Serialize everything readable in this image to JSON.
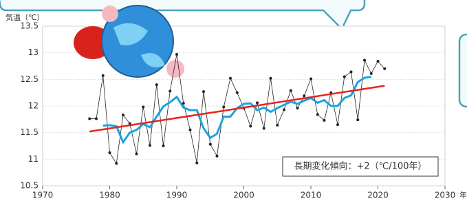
{
  "chart_data": {
    "type": "line",
    "ylabel": "気温（℃）",
    "xlabel": "年",
    "annotation": "長期変化傾向：+2（℃/100年）",
    "xlim": [
      1970,
      2030
    ],
    "xticks": [
      1970,
      1980,
      1990,
      2000,
      2010,
      2020,
      2030
    ],
    "ylim": [
      10.5,
      13.5
    ],
    "yticks": [
      10.5,
      11,
      11.5,
      12,
      12.5,
      13,
      13.5
    ],
    "grid": true,
    "series": [
      {
        "color": "#222222",
        "markers": true,
        "x": [
          1977,
          1978,
          1979,
          1980,
          1981,
          1982,
          1983,
          1984,
          1985,
          1986,
          1987,
          1988,
          1989,
          1990,
          1991,
          1992,
          1993,
          1994,
          1995,
          1996,
          1997,
          1998,
          1999,
          2000,
          2001,
          2002,
          2003,
          2004,
          2005,
          2006,
          2007,
          2008,
          2009,
          2010,
          2011,
          2012,
          2013,
          2014,
          2015,
          2016,
          2017,
          2018,
          2019,
          2020,
          2021
        ],
        "values": [
          11.76,
          11.76,
          12.57,
          11.12,
          10.92,
          11.83,
          11.67,
          11.1,
          11.98,
          11.26,
          12.4,
          11.25,
          12.28,
          12.97,
          12.05,
          11.55,
          10.93,
          12.27,
          11.28,
          11.06,
          11.98,
          12.52,
          12.25,
          11.96,
          11.62,
          12.06,
          11.58,
          12.52,
          11.64,
          11.93,
          12.29,
          11.96,
          12.19,
          12.51,
          11.84,
          11.73,
          12.25,
          11.65,
          12.55,
          12.64,
          11.74,
          12.86,
          12.61,
          12.84,
          12.7
        ]
      },
      {
        "color": "#1aa3e0",
        "markers": false,
        "x": [
          1979,
          1980,
          1981,
          1982,
          1983,
          1984,
          1985,
          1986,
          1987,
          1988,
          1989,
          1990,
          1991,
          1992,
          1993,
          1994,
          1995,
          1996,
          1997,
          1998,
          1999,
          2000,
          2001,
          2002,
          2003,
          2004,
          2005,
          2006,
          2007,
          2008,
          2009,
          2010,
          2011,
          2012,
          2013,
          2014,
          2015,
          2016,
          2017,
          2018,
          2019
        ],
        "values": [
          11.63,
          11.64,
          11.62,
          11.32,
          11.5,
          11.55,
          11.66,
          11.6,
          11.8,
          11.99,
          12.07,
          12.17,
          11.97,
          11.92,
          11.92,
          11.58,
          11.4,
          11.48,
          11.8,
          11.8,
          11.96,
          12.04,
          12.05,
          11.92,
          11.97,
          11.89,
          11.96,
          12.02,
          12.08,
          12.04,
          12.1,
          12.15,
          12.06,
          12.11,
          12,
          12,
          12.15,
          12.2,
          12.45,
          12.53,
          12.55
        ]
      },
      {
        "color": "#e8231c",
        "markers": false,
        "x": [
          1977,
          2021
        ],
        "values": [
          11.52,
          12.38
        ]
      }
    ]
  }
}
